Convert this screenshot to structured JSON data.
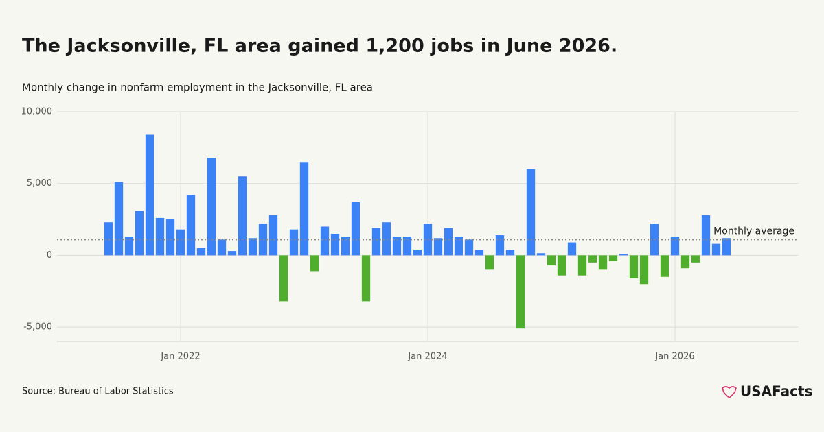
{
  "chart_data": {
    "type": "bar",
    "title": "The Jacksonville, FL area gained 1,200 jobs in June 2026.",
    "subtitle": "Monthly change in nonfarm employment in the Jacksonville, FL area",
    "source": "Source: Bureau of Labor Statistics",
    "brand": "USAFacts",
    "x": [
      "2021-06",
      "2021-07",
      "2021-08",
      "2021-09",
      "2021-10",
      "2021-11",
      "2021-12",
      "2022-01",
      "2022-02",
      "2022-03",
      "2022-04",
      "2022-05",
      "2022-06",
      "2022-07",
      "2022-08",
      "2022-09",
      "2022-10",
      "2022-11",
      "2022-12",
      "2023-01",
      "2023-02",
      "2023-03",
      "2023-04",
      "2023-05",
      "2023-06",
      "2023-07",
      "2023-08",
      "2023-09",
      "2023-10",
      "2023-11",
      "2023-12",
      "2024-01",
      "2024-02",
      "2024-03",
      "2024-04",
      "2024-05",
      "2024-06",
      "2024-07",
      "2024-08",
      "2024-09",
      "2024-10",
      "2024-11",
      "2024-12",
      "2025-01",
      "2025-02",
      "2025-03",
      "2025-04",
      "2025-05",
      "2025-06",
      "2025-07",
      "2025-08",
      "2025-09",
      "2025-10",
      "2025-11",
      "2025-12",
      "2026-01",
      "2026-02",
      "2026-03",
      "2026-04",
      "2026-05",
      "2026-06"
    ],
    "values": [
      2300,
      5100,
      1300,
      3100,
      8400,
      2600,
      2500,
      1800,
      4200,
      500,
      6800,
      1100,
      300,
      5500,
      1200,
      2200,
      2800,
      -3200,
      1800,
      6500,
      -1100,
      2000,
      1500,
      1300,
      3700,
      -3200,
      1900,
      2300,
      1300,
      1300,
      400,
      2200,
      1200,
      1900,
      1300,
      1100,
      400,
      -1000,
      1400,
      400,
      -5100,
      6000,
      150,
      -700,
      -1400,
      900,
      -1400,
      -500,
      -1000,
      -400,
      100,
      -1600,
      -2000,
      2200,
      -1500,
      1300,
      -900,
      -500,
      2800,
      800,
      1200
    ],
    "positive_color": "#3b82f6",
    "negative_color": "#4fae2b",
    "average": {
      "label": "Monthly average",
      "value": 1100
    },
    "xlim": [
      "2021-01",
      "2027-01"
    ],
    "xticks": [
      {
        "value": "2022-01",
        "label": "Jan 2022"
      },
      {
        "value": "2024-01",
        "label": "Jan 2024"
      },
      {
        "value": "2026-01",
        "label": "Jan 2026"
      }
    ],
    "ylim": [
      -6000,
      10000
    ],
    "yticks": [
      {
        "value": -5000,
        "label": "-5,000"
      },
      0,
      {
        "value": 5000,
        "label": "5,000"
      },
      {
        "value": 10000,
        "label": "10,000"
      }
    ],
    "grid": true
  }
}
